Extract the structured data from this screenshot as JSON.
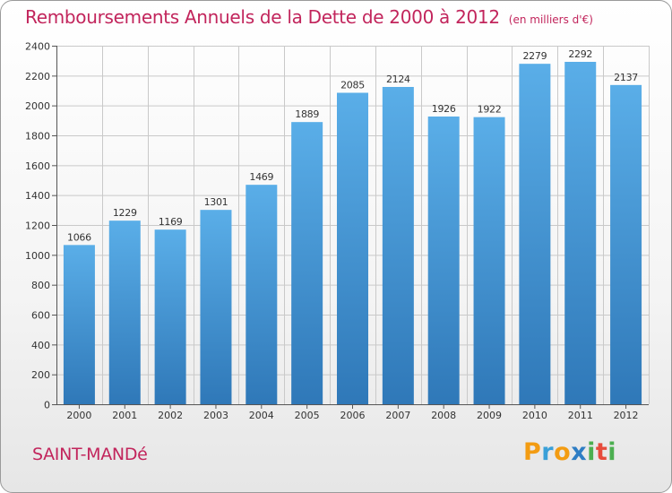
{
  "header": {
    "title": "Remboursements Annuels de la Dette de 2000 à 2012",
    "subtitle": "(en milliers d'€)"
  },
  "footer": {
    "town": "SAINT-MANDé",
    "logo_text": "Proxiti"
  },
  "colors": {
    "bar_top": "#5aaee8",
    "bar_bottom": "#2f78b8",
    "title": "#c2255c",
    "logo_p": "#f39c12",
    "logo_r": "#3aa0d8",
    "logo_o": "#f39c12",
    "logo_x": "#2e7dc4",
    "logo_i1": "#4caf50",
    "logo_t": "#e74c3c",
    "logo_i2": "#4caf50"
  },
  "chart_data": {
    "type": "bar",
    "title": "Remboursements Annuels de la Dette de 2000 à 2012",
    "subtitle": "(en milliers d'€)",
    "xlabel": "",
    "ylabel": "",
    "categories": [
      "2000",
      "2001",
      "2002",
      "2003",
      "2004",
      "2005",
      "2006",
      "2007",
      "2008",
      "2009",
      "2010",
      "2011",
      "2012"
    ],
    "values": [
      1066,
      1229,
      1169,
      1301,
      1469,
      1889,
      2085,
      2124,
      1926,
      1922,
      2279,
      2292,
      2137
    ],
    "ylim": [
      0,
      2400
    ],
    "yticks": [
      0,
      200,
      400,
      600,
      800,
      1000,
      1200,
      1400,
      1600,
      1800,
      2000,
      2200,
      2400
    ],
    "grid": true,
    "data_labels": true
  }
}
